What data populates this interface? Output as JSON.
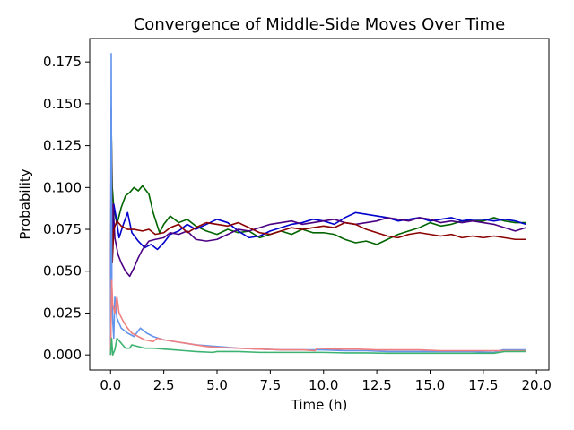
{
  "chart_data": {
    "type": "line",
    "title": "Convergence of Middle-Side Moves Over Time",
    "xlabel": "Time (h)",
    "ylabel": "Probability",
    "xlim": [
      -0.98,
      20.58
    ],
    "ylim": [
      -0.009,
      0.189
    ],
    "xticks": [
      0.0,
      2.5,
      5.0,
      7.5,
      10.0,
      12.5,
      15.0,
      17.5,
      20.0
    ],
    "xtick_labels": [
      "0.0",
      "2.5",
      "5.0",
      "7.5",
      "10.0",
      "12.5",
      "15.0",
      "17.5",
      "20.0"
    ],
    "yticks": [
      0.0,
      0.025,
      0.05,
      0.075,
      0.1,
      0.125,
      0.15,
      0.175
    ],
    "ytick_labels": [
      "0.000",
      "0.025",
      "0.050",
      "0.075",
      "0.100",
      "0.125",
      "0.150",
      "0.175"
    ],
    "grid": false,
    "legend": "none",
    "series": [
      {
        "color": "#006400",
        "points": [
          [
            0.0,
            0.005
          ],
          [
            0.04,
            0.131
          ],
          [
            0.08,
            0.1
          ],
          [
            0.15,
            0.088
          ],
          [
            0.3,
            0.078
          ],
          [
            0.5,
            0.088
          ],
          [
            0.7,
            0.095
          ],
          [
            0.9,
            0.097
          ],
          [
            1.1,
            0.1
          ],
          [
            1.3,
            0.098
          ],
          [
            1.5,
            0.101
          ],
          [
            1.8,
            0.096
          ],
          [
            2.0,
            0.085
          ],
          [
            2.3,
            0.073
          ],
          [
            2.5,
            0.078
          ],
          [
            2.8,
            0.083
          ],
          [
            3.2,
            0.079
          ],
          [
            3.6,
            0.081
          ],
          [
            4.0,
            0.077
          ],
          [
            4.5,
            0.074
          ],
          [
            5.0,
            0.072
          ],
          [
            5.5,
            0.075
          ],
          [
            6.0,
            0.073
          ],
          [
            6.5,
            0.074
          ],
          [
            7.0,
            0.07
          ],
          [
            7.5,
            0.072
          ],
          [
            8.0,
            0.074
          ],
          [
            8.5,
            0.072
          ],
          [
            9.0,
            0.075
          ],
          [
            9.5,
            0.073
          ],
          [
            10.0,
            0.073
          ],
          [
            10.5,
            0.072
          ],
          [
            11.0,
            0.069
          ],
          [
            11.5,
            0.067
          ],
          [
            12.0,
            0.068
          ],
          [
            12.5,
            0.066
          ],
          [
            13.0,
            0.069
          ],
          [
            13.5,
            0.072
          ],
          [
            14.0,
            0.074
          ],
          [
            14.5,
            0.076
          ],
          [
            15.0,
            0.079
          ],
          [
            15.5,
            0.077
          ],
          [
            16.0,
            0.078
          ],
          [
            16.5,
            0.08
          ],
          [
            17.0,
            0.08
          ],
          [
            17.5,
            0.08
          ],
          [
            18.0,
            0.082
          ],
          [
            18.5,
            0.08
          ],
          [
            19.0,
            0.079
          ],
          [
            19.5,
            0.079
          ]
        ]
      },
      {
        "color": "#0000CD",
        "points": [
          [
            0.0,
            0.01
          ],
          [
            0.04,
            0.112
          ],
          [
            0.08,
            0.06
          ],
          [
            0.15,
            0.09
          ],
          [
            0.25,
            0.083
          ],
          [
            0.4,
            0.07
          ],
          [
            0.6,
            0.078
          ],
          [
            0.8,
            0.085
          ],
          [
            1.0,
            0.073
          ],
          [
            1.3,
            0.068
          ],
          [
            1.6,
            0.064
          ],
          [
            1.9,
            0.066
          ],
          [
            2.2,
            0.063
          ],
          [
            2.5,
            0.067
          ],
          [
            2.8,
            0.072
          ],
          [
            3.2,
            0.074
          ],
          [
            3.6,
            0.078
          ],
          [
            4.0,
            0.075
          ],
          [
            4.5,
            0.078
          ],
          [
            5.0,
            0.081
          ],
          [
            5.5,
            0.079
          ],
          [
            6.0,
            0.074
          ],
          [
            6.5,
            0.07
          ],
          [
            7.0,
            0.071
          ],
          [
            7.5,
            0.074
          ],
          [
            8.0,
            0.076
          ],
          [
            8.5,
            0.078
          ],
          [
            9.0,
            0.079
          ],
          [
            9.5,
            0.081
          ],
          [
            10.0,
            0.08
          ],
          [
            10.5,
            0.078
          ],
          [
            11.0,
            0.082
          ],
          [
            11.5,
            0.085
          ],
          [
            12.0,
            0.084
          ],
          [
            12.5,
            0.083
          ],
          [
            13.0,
            0.082
          ],
          [
            13.5,
            0.08
          ],
          [
            14.0,
            0.081
          ],
          [
            14.5,
            0.082
          ],
          [
            15.0,
            0.08
          ],
          [
            15.5,
            0.081
          ],
          [
            16.0,
            0.082
          ],
          [
            16.5,
            0.08
          ],
          [
            17.0,
            0.081
          ],
          [
            17.5,
            0.081
          ],
          [
            18.0,
            0.08
          ],
          [
            18.5,
            0.081
          ],
          [
            19.0,
            0.08
          ],
          [
            19.5,
            0.078
          ]
        ]
      },
      {
        "color": "#4B0082",
        "points": [
          [
            0.0,
            0.008
          ],
          [
            0.03,
            0.147
          ],
          [
            0.06,
            0.08
          ],
          [
            0.12,
            0.09
          ],
          [
            0.2,
            0.07
          ],
          [
            0.35,
            0.06
          ],
          [
            0.5,
            0.055
          ],
          [
            0.7,
            0.05
          ],
          [
            0.9,
            0.047
          ],
          [
            1.1,
            0.052
          ],
          [
            1.3,
            0.058
          ],
          [
            1.5,
            0.063
          ],
          [
            1.8,
            0.068
          ],
          [
            2.1,
            0.069
          ],
          [
            2.5,
            0.07
          ],
          [
            2.8,
            0.073
          ],
          [
            3.2,
            0.072
          ],
          [
            3.6,
            0.074
          ],
          [
            4.0,
            0.069
          ],
          [
            4.5,
            0.068
          ],
          [
            5.0,
            0.069
          ],
          [
            5.5,
            0.072
          ],
          [
            6.0,
            0.075
          ],
          [
            6.5,
            0.074
          ],
          [
            7.0,
            0.076
          ],
          [
            7.5,
            0.078
          ],
          [
            8.0,
            0.079
          ],
          [
            8.5,
            0.08
          ],
          [
            9.0,
            0.078
          ],
          [
            9.5,
            0.079
          ],
          [
            10.0,
            0.08
          ],
          [
            10.5,
            0.081
          ],
          [
            11.0,
            0.079
          ],
          [
            11.5,
            0.078
          ],
          [
            12.0,
            0.079
          ],
          [
            12.5,
            0.08
          ],
          [
            13.0,
            0.082
          ],
          [
            13.5,
            0.081
          ],
          [
            14.0,
            0.08
          ],
          [
            14.5,
            0.082
          ],
          [
            15.0,
            0.081
          ],
          [
            15.5,
            0.079
          ],
          [
            16.0,
            0.08
          ],
          [
            16.5,
            0.079
          ],
          [
            17.0,
            0.08
          ],
          [
            17.5,
            0.079
          ],
          [
            18.0,
            0.078
          ],
          [
            18.5,
            0.076
          ],
          [
            19.0,
            0.074
          ],
          [
            19.5,
            0.076
          ]
        ]
      },
      {
        "color": "#8B0000",
        "points": [
          [
            0.0,
            0.02
          ],
          [
            0.04,
            0.128
          ],
          [
            0.08,
            0.055
          ],
          [
            0.15,
            0.075
          ],
          [
            0.3,
            0.08
          ],
          [
            0.5,
            0.077
          ],
          [
            0.8,
            0.075
          ],
          [
            1.1,
            0.075
          ],
          [
            1.5,
            0.074
          ],
          [
            1.8,
            0.075
          ],
          [
            2.1,
            0.072
          ],
          [
            2.5,
            0.073
          ],
          [
            2.8,
            0.076
          ],
          [
            3.2,
            0.078
          ],
          [
            3.6,
            0.073
          ],
          [
            4.0,
            0.076
          ],
          [
            4.5,
            0.079
          ],
          [
            5.0,
            0.078
          ],
          [
            5.5,
            0.077
          ],
          [
            6.0,
            0.079
          ],
          [
            6.5,
            0.076
          ],
          [
            7.0,
            0.073
          ],
          [
            7.5,
            0.072
          ],
          [
            8.0,
            0.074
          ],
          [
            8.5,
            0.076
          ],
          [
            9.0,
            0.075
          ],
          [
            9.5,
            0.076
          ],
          [
            10.0,
            0.077
          ],
          [
            10.5,
            0.076
          ],
          [
            11.0,
            0.079
          ],
          [
            11.5,
            0.078
          ],
          [
            12.0,
            0.075
          ],
          [
            12.5,
            0.073
          ],
          [
            13.0,
            0.071
          ],
          [
            13.5,
            0.07
          ],
          [
            14.0,
            0.072
          ],
          [
            14.5,
            0.073
          ],
          [
            15.0,
            0.072
          ],
          [
            15.5,
            0.071
          ],
          [
            16.0,
            0.072
          ],
          [
            16.5,
            0.07
          ],
          [
            17.0,
            0.071
          ],
          [
            17.5,
            0.07
          ],
          [
            18.0,
            0.071
          ],
          [
            18.5,
            0.07
          ],
          [
            19.0,
            0.069
          ],
          [
            19.5,
            0.069
          ]
        ]
      },
      {
        "color": "#6495ED",
        "points": [
          [
            0.0,
            0.0
          ],
          [
            0.03,
            0.18
          ],
          [
            0.06,
            0.04
          ],
          [
            0.1,
            0.02
          ],
          [
            0.15,
            0.01
          ],
          [
            0.2,
            0.035
          ],
          [
            0.3,
            0.022
          ],
          [
            0.5,
            0.016
          ],
          [
            0.8,
            0.013
          ],
          [
            1.1,
            0.011
          ],
          [
            1.4,
            0.016
          ],
          [
            1.7,
            0.013
          ],
          [
            2.0,
            0.011
          ],
          [
            2.5,
            0.009
          ],
          [
            3.0,
            0.008
          ],
          [
            3.5,
            0.007
          ],
          [
            4.0,
            0.006
          ],
          [
            5.0,
            0.005
          ],
          [
            6.0,
            0.004
          ],
          [
            7.0,
            0.0035
          ],
          [
            8.0,
            0.003
          ],
          [
            9.0,
            0.003
          ],
          [
            10.0,
            0.003
          ],
          [
            11.0,
            0.0025
          ],
          [
            12.0,
            0.0025
          ],
          [
            13.0,
            0.002
          ],
          [
            14.0,
            0.002
          ],
          [
            15.0,
            0.002
          ],
          [
            16.0,
            0.002
          ],
          [
            17.0,
            0.002
          ],
          [
            18.0,
            0.0015
          ],
          [
            18.4,
            0.003
          ],
          [
            19.0,
            0.003
          ],
          [
            19.5,
            0.003
          ]
        ]
      },
      {
        "color": "#F08080",
        "points": [
          [
            0.0,
            0.0
          ],
          [
            0.05,
            0.045
          ],
          [
            0.1,
            0.03
          ],
          [
            0.2,
            0.025
          ],
          [
            0.3,
            0.035
          ],
          [
            0.4,
            0.025
          ],
          [
            0.6,
            0.02
          ],
          [
            0.8,
            0.016
          ],
          [
            1.0,
            0.013
          ],
          [
            1.3,
            0.011
          ],
          [
            1.6,
            0.009
          ],
          [
            2.0,
            0.008
          ],
          [
            2.2,
            0.01
          ],
          [
            2.5,
            0.009
          ],
          [
            3.0,
            0.008
          ],
          [
            3.5,
            0.007
          ],
          [
            4.0,
            0.006
          ],
          [
            4.5,
            0.005
          ],
          [
            5.0,
            0.0045
          ],
          [
            6.0,
            0.004
          ],
          [
            7.0,
            0.0035
          ],
          [
            8.0,
            0.003
          ],
          [
            9.0,
            0.003
          ],
          [
            9.6,
            0.0025
          ],
          [
            9.7,
            0.004
          ],
          [
            10.5,
            0.0035
          ],
          [
            11.5,
            0.0035
          ],
          [
            12.5,
            0.003
          ],
          [
            13.5,
            0.003
          ],
          [
            14.5,
            0.003
          ],
          [
            15.5,
            0.0025
          ],
          [
            16.5,
            0.0025
          ],
          [
            17.5,
            0.0025
          ],
          [
            18.5,
            0.0025
          ],
          [
            19.5,
            0.0025
          ]
        ]
      },
      {
        "color": "#3CB371",
        "points": [
          [
            0.0,
            0.0
          ],
          [
            0.05,
            0.01
          ],
          [
            0.1,
            0.0
          ],
          [
            0.2,
            0.003
          ],
          [
            0.3,
            0.01
          ],
          [
            0.5,
            0.007
          ],
          [
            0.7,
            0.004
          ],
          [
            0.9,
            0.004
          ],
          [
            1.0,
            0.006
          ],
          [
            1.3,
            0.005
          ],
          [
            1.6,
            0.004
          ],
          [
            2.0,
            0.004
          ],
          [
            2.5,
            0.0035
          ],
          [
            3.0,
            0.003
          ],
          [
            3.5,
            0.0025
          ],
          [
            4.0,
            0.002
          ],
          [
            4.8,
            0.0015
          ],
          [
            5.0,
            0.002
          ],
          [
            6.0,
            0.002
          ],
          [
            7.0,
            0.0015
          ],
          [
            8.0,
            0.0015
          ],
          [
            9.0,
            0.0015
          ],
          [
            10.0,
            0.0015
          ],
          [
            11.0,
            0.0012
          ],
          [
            12.0,
            0.0012
          ],
          [
            13.0,
            0.001
          ],
          [
            14.0,
            0.001
          ],
          [
            15.0,
            0.001
          ],
          [
            16.0,
            0.001
          ],
          [
            17.0,
            0.001
          ],
          [
            18.0,
            0.001
          ],
          [
            18.5,
            0.002
          ],
          [
            19.5,
            0.002
          ]
        ]
      }
    ]
  }
}
